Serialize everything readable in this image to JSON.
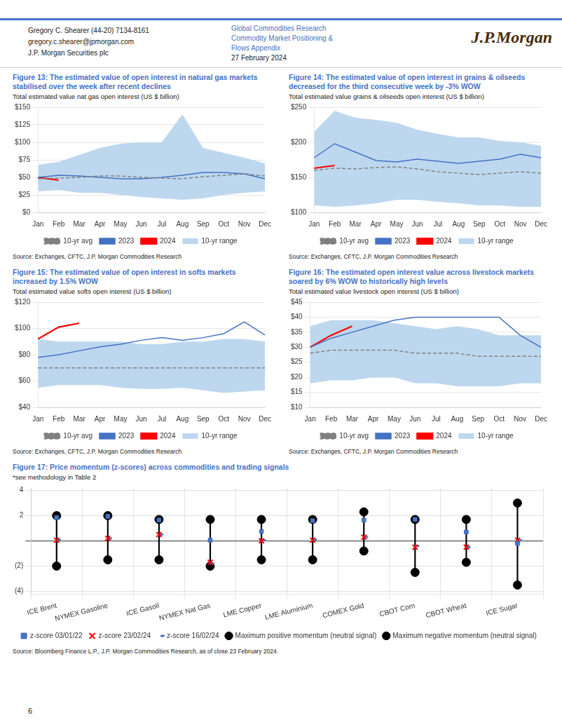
{
  "header_left": [
    "Gregory C. Shearer  (44-20) 7134-8161",
    "gregory.c.shearer@jpmorgan.com",
    "J.P. Morgan Securities plc"
  ],
  "header_center": [
    "Global Commodities Research",
    "Commodity Market Positioning &",
    "Flows Appendix",
    "27 February 2024"
  ],
  "header_logo": "J.P.Morgan",
  "page_number": "6",
  "chart_data": [
    {
      "type": "line",
      "title": "Figure 13: The estimated value of open interest in natural gas markets\nstabilised over the week after recent declines",
      "subtitle": "Total estimated value nat gas open interest (US $ billion)",
      "annotations": [
        "Source: Exchanges, CFTC, J.P. Morgan Commodities Research"
      ],
      "categories": [
        "Jan",
        "Feb",
        "Mar",
        "Apr",
        "May",
        "Jun",
        "Jul",
        "Aug",
        "Sep",
        "Oct",
        "Nov",
        "Dec"
      ],
      "series": [
        {
          "name": "10-yr range",
          "type": "area",
          "color": "#BDD7EE",
          "low": [
            30,
            32,
            28,
            28,
            25,
            22,
            20,
            18,
            20,
            25,
            28,
            30
          ],
          "high": [
            68,
            72,
            82,
            92,
            98,
            100,
            100,
            140,
            92,
            85,
            78,
            70
          ]
        },
        {
          "name": "10-yr avg",
          "color": "#808080",
          "line_style": "dashed",
          "values": [
            48,
            49,
            50,
            52,
            52,
            50,
            49,
            48,
            51,
            53,
            55,
            52
          ]
        },
        {
          "name": "2023",
          "color": "#4472C4",
          "values": [
            50,
            53,
            52,
            50,
            48,
            48,
            50,
            53,
            57,
            57,
            55,
            48
          ]
        },
        {
          "name": "2024",
          "color": "#FF0000",
          "values": [
            50,
            46,
            null,
            null,
            null,
            null,
            null,
            null,
            null,
            null,
            null,
            null
          ]
        }
      ],
      "ylim": [
        0,
        150
      ],
      "yticks": [
        {
          "value": 0,
          "label": "$0"
        },
        {
          "value": 25,
          "label": "$25"
        },
        {
          "value": 50,
          "label": "$50"
        },
        {
          "value": 75,
          "label": "$75"
        },
        {
          "value": 100,
          "label": "$100"
        },
        {
          "value": 125,
          "label": "$125"
        },
        {
          "value": 150,
          "label": "$150"
        }
      ],
      "grid": "y",
      "legend": "bottom"
    },
    {
      "type": "line",
      "title": "Figure 14: The estimated value of open interest in grains & oilseeds\ndecreased for the third consecutive week by -3% WOW",
      "subtitle": "Total estimated value grains & oilseeds open interest (US $ billion)",
      "annotations": [
        "Source: Exchanges, CFTC, J.P. Morgan Commodities Research"
      ],
      "categories": [
        "Jan",
        "Feb",
        "Mar",
        "Apr",
        "May",
        "Jun",
        "Jul",
        "Aug",
        "Sep",
        "Oct",
        "Nov",
        "Dec"
      ],
      "series": [
        {
          "name": "10-yr range",
          "type": "area",
          "color": "#BDD7EE",
          "low": [
            110,
            108,
            110,
            113,
            118,
            118,
            115,
            113,
            110,
            110,
            108,
            108
          ],
          "high": [
            215,
            245,
            235,
            232,
            228,
            218,
            212,
            207,
            207,
            202,
            200,
            195
          ]
        },
        {
          "name": "10-yr avg",
          "color": "#808080",
          "line_style": "dashed",
          "values": [
            160,
            163,
            162,
            164,
            165,
            162,
            158,
            156,
            154,
            156,
            158,
            156
          ]
        },
        {
          "name": "2023",
          "color": "#4472C4",
          "values": [
            178,
            198,
            186,
            174,
            172,
            176,
            173,
            170,
            173,
            176,
            183,
            178
          ]
        },
        {
          "name": "2024",
          "color": "#FF0000",
          "values": [
            163,
            167,
            null,
            null,
            null,
            null,
            null,
            null,
            null,
            null,
            null,
            null
          ]
        }
      ],
      "ylim": [
        100,
        250
      ],
      "yticks": [
        {
          "value": 100,
          "label": "$100"
        },
        {
          "value": 150,
          "label": "$150"
        },
        {
          "value": 200,
          "label": "$200"
        },
        {
          "value": 250,
          "label": "$250"
        }
      ],
      "grid": "y",
      "legend": "bottom"
    },
    {
      "type": "line",
      "title": "Figure 15: The estimated value of open interest in softs markets\nincreased by 1.5% WOW",
      "subtitle": "Total estimated value softs open interest (US $ billion)",
      "annotations": [
        "Source: Exchanges, CFTC, J.P. Morgan Commodities Research"
      ],
      "categories": [
        "Jan",
        "Feb",
        "Mar",
        "Apr",
        "May",
        "Jun",
        "Jul",
        "Aug",
        "Sep",
        "Oct",
        "Nov",
        "Dec"
      ],
      "series": [
        {
          "name": "10-yr range",
          "type": "area",
          "color": "#BDD7EE",
          "low": [
            55,
            57,
            57,
            57,
            55,
            54,
            54,
            55,
            53,
            51,
            52,
            53
          ],
          "high": [
            92,
            90,
            90,
            90,
            90,
            88,
            88,
            90,
            90,
            92,
            92,
            90
          ]
        },
        {
          "name": "10-yr avg",
          "color": "#808080",
          "line_style": "dashed",
          "values": [
            70,
            70,
            70,
            70,
            70,
            70,
            70,
            70,
            70,
            70,
            70,
            70
          ]
        },
        {
          "name": "2023",
          "color": "#4472C4",
          "values": [
            78,
            80,
            83,
            86,
            88,
            91,
            93,
            91,
            93,
            96,
            105,
            95
          ]
        },
        {
          "name": "2024",
          "color": "#FF0000",
          "values": [
            92,
            101,
            104,
            null,
            null,
            null,
            null,
            null,
            null,
            null,
            null,
            null
          ]
        }
      ],
      "ylim": [
        40,
        120
      ],
      "yticks": [
        {
          "value": 40,
          "label": "$40"
        },
        {
          "value": 60,
          "label": "$60"
        },
        {
          "value": 80,
          "label": "$80"
        },
        {
          "value": 100,
          "label": "$100"
        },
        {
          "value": 120,
          "label": "$120"
        }
      ],
      "grid": "y",
      "legend": "bottom"
    },
    {
      "type": "line",
      "title": "Figure 16: The estimated open interest value across livestock markets\nsoared by 6% WOW to historically high levels",
      "subtitle": "Total estimated value livestock open interest (US $ billion)",
      "annotations": [
        "Source: Exchanges, CFTC, J.P. Morgan Commodities Research"
      ],
      "categories": [
        "Jan",
        "Feb",
        "Mar",
        "Apr",
        "May",
        "Jun",
        "Jul",
        "Aug",
        "Sep",
        "Oct",
        "Nov",
        "Dec"
      ],
      "series": [
        {
          "name": "10-yr range",
          "type": "area",
          "color": "#BDD7EE",
          "low": [
            18,
            19,
            19,
            20,
            20,
            18,
            18,
            17,
            17,
            17,
            18,
            18
          ],
          "high": [
            37,
            39,
            39,
            39,
            38,
            37,
            36,
            37,
            36,
            34,
            34,
            34
          ]
        },
        {
          "name": "10-yr avg",
          "color": "#808080",
          "line_style": "dashed",
          "values": [
            28,
            29,
            29,
            29,
            29,
            28,
            28,
            28,
            27,
            27,
            27,
            27
          ]
        },
        {
          "name": "2023",
          "color": "#4472C4",
          "values": [
            30,
            33,
            35,
            37,
            39,
            40,
            40,
            40,
            40,
            40,
            34,
            30
          ]
        },
        {
          "name": "2024",
          "color": "#FF0000",
          "values": [
            30,
            34,
            37,
            null,
            null,
            null,
            null,
            null,
            null,
            null,
            null,
            null
          ]
        }
      ],
      "ylim": [
        10,
        45
      ],
      "yticks": [
        {
          "value": 10,
          "label": "$10"
        },
        {
          "value": 15,
          "label": "$15"
        },
        {
          "value": 20,
          "label": "$20"
        },
        {
          "value": 25,
          "label": "$25"
        },
        {
          "value": 30,
          "label": "$30"
        },
        {
          "value": 35,
          "label": "$35"
        },
        {
          "value": 40,
          "label": "$40"
        },
        {
          "value": 45,
          "label": "$45"
        }
      ],
      "grid": "y",
      "legend": "bottom"
    },
    {
      "type": "scatter",
      "title": "Figure 17: Price momentum (z-scores) across commodities and trading signals",
      "subtitle": "*see methodology in Table 2",
      "annotations": [
        "Source: Bloomberg Finance L.P., J.P. Morgan Commodities Research, as of close 23 February 2024."
      ],
      "categories": [
        "ICE Brent",
        "NYMEX Gasoline",
        "ICE Gasoil",
        "NYMEX Nat Gas",
        "LME Copper",
        "LME Aluminium",
        "COMEX Gold",
        "CBOT Corn",
        "CBOT Wheat",
        "ICE Sugar"
      ],
      "series": [
        {
          "name": "z-score 03/01/22",
          "color": "#4472C4",
          "marker": "square",
          "values": [
            1.85,
            1.95,
            1.65,
            0.05,
            0.75,
            1.6,
            1.65,
            1.7,
            0.7,
            -0.2
          ]
        },
        {
          "name": "z-score 23/02/24",
          "color": "#FF0000",
          "marker": "x",
          "values": [
            0.05,
            0.2,
            0.5,
            -1.7,
            0.0,
            0.05,
            0.3,
            -0.5,
            -0.5,
            0.05
          ]
        },
        {
          "name": "Maximum positive momentum (neutral signal)",
          "color": "#000000",
          "marker": "circle",
          "values": [
            2.0,
            2.0,
            1.7,
            1.7,
            1.7,
            1.7,
            2.3,
            1.7,
            1.7,
            3.0
          ]
        },
        {
          "name": "Maximum negative momentum (neutral signal)",
          "color": "#000000",
          "marker": "circle",
          "values": [
            -2.0,
            -1.5,
            -1.5,
            -2.0,
            -1.5,
            -1.5,
            -0.8,
            -2.5,
            -1.7,
            -3.5
          ]
        },
        {
          "name": "z-score 16/02/24",
          "color": "#4472C4",
          "marker": "dash",
          "values": [
            0.1,
            0.2,
            0.5,
            -1.8,
            0.05,
            0.1,
            0.3,
            -0.4,
            -0.5,
            0.05
          ]
        }
      ],
      "ylim": [
        -4.2,
        4.2
      ],
      "yticks": [
        {
          "value": -4,
          "label": "(4)"
        },
        {
          "value": -2,
          "label": "(2)"
        },
        {
          "value": 0,
          "label": ""
        },
        2,
        4
      ],
      "grid": true,
      "legend": "bottom"
    }
  ]
}
